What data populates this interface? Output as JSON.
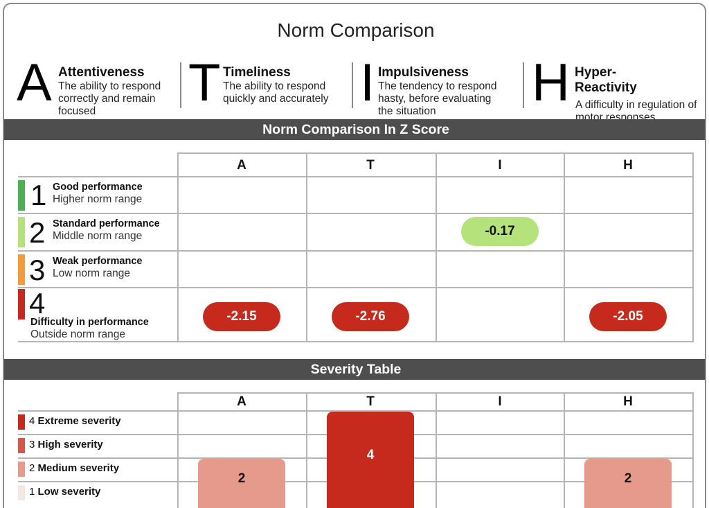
{
  "page_title": "Norm Comparison",
  "legend": [
    {
      "letter": "A",
      "name": "Attentiveness",
      "description": "The ability to respond correctly and remain focused"
    },
    {
      "letter": "T",
      "name": "Timeliness",
      "description": "The ability to respond quickly and accurately"
    },
    {
      "letter": "I",
      "name": "Impulsiveness",
      "description": "The tendency to respond hasty, before evaluating the situation"
    },
    {
      "letter": "H",
      "name": "Hyper-Reactivity",
      "description": "A difficulty in regulation of motor responses"
    }
  ],
  "norm_section": {
    "title": "Norm Comparison In Z Score",
    "columns": [
      "A",
      "T",
      "I",
      "H"
    ],
    "rows": [
      {
        "num": "1",
        "title": "Good performance",
        "subtitle": "Higher norm range",
        "color": "#4caf50"
      },
      {
        "num": "2",
        "title": "Standard performance",
        "subtitle": "Middle norm range",
        "color": "#b5e27a"
      },
      {
        "num": "3",
        "title": "Weak performance",
        "subtitle": "Low norm range",
        "color": "#f39a3c"
      },
      {
        "num": "4",
        "title": "Difficulty in performance",
        "subtitle": "Outside norm range",
        "color": "#c62a1c"
      }
    ],
    "scores": {
      "A": {
        "value": "-2.15",
        "level": 4
      },
      "T": {
        "value": "-2.76",
        "level": 4
      },
      "I": {
        "value": "-0.17",
        "level": 2
      },
      "H": {
        "value": "-2.05",
        "level": 4
      }
    }
  },
  "severity_section": {
    "title": "Severity Table",
    "columns": [
      "A",
      "T",
      "I",
      "H"
    ],
    "levels": [
      {
        "num": "4",
        "label": "Extreme severity",
        "color": "#c62a1c"
      },
      {
        "num": "3",
        "label": "High severity",
        "color": "#d6574a"
      },
      {
        "num": "2",
        "label": "Medium severity",
        "color": "#e59a8c"
      },
      {
        "num": "1",
        "label": "Low severity",
        "color": "#f5e6e1"
      }
    ],
    "values": {
      "A": 2,
      "T": 4,
      "I": null,
      "H": 2
    },
    "labels": {
      "A": "2",
      "T": "4",
      "H": "2"
    }
  }
}
